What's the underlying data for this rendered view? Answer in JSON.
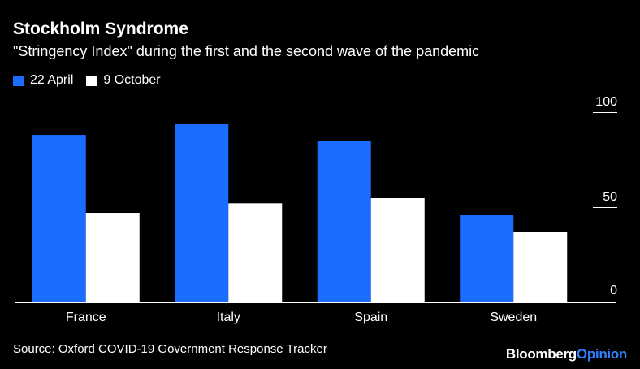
{
  "title": "Stockholm Syndrome",
  "subtitle": "\"Stringency Index\" during the first and the second wave of the pandemic",
  "source": "Source: Oxford COVID-19 Government Response Tracker",
  "brand": {
    "part1": "Bloomberg",
    "part2": "Opinion"
  },
  "colors": {
    "background": "#000000",
    "series1": "#1a6dff",
    "series2": "#ffffff",
    "brand_accent": "#2f80ff"
  },
  "chart_data": {
    "type": "bar",
    "categories": [
      "France",
      "Italy",
      "Spain",
      "Sweden"
    ],
    "series": [
      {
        "name": "22 April",
        "color": "#1a6dff",
        "values": [
          88,
          94,
          85,
          46
        ]
      },
      {
        "name": "9 October",
        "color": "#ffffff",
        "values": [
          47,
          52,
          55,
          37
        ]
      }
    ],
    "y_ticks": [
      0,
      50,
      100
    ],
    "ylim": [
      0,
      100
    ],
    "axis_side": "right",
    "legend_position": "top-left",
    "grid": false
  }
}
